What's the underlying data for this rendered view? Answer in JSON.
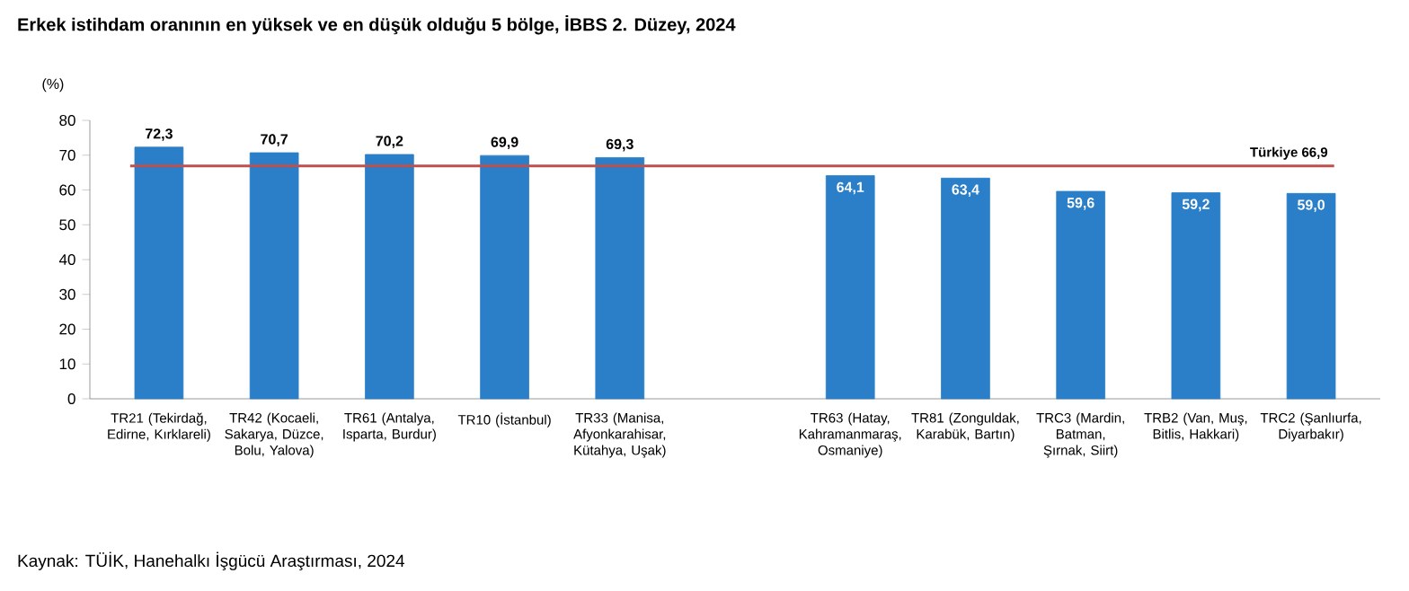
{
  "chart_data": {
    "type": "bar",
    "title": "Erkek istihdam oranının en yüksek ve en düşük olduğu 5 bölge, İBBS 2. Düzey, 2024",
    "ylabel": "(%)",
    "categories": [
      "TR21 (Tekirdağ, Edirne, Kırklareli)",
      "TR42 (Kocaeli, Sakarya, Düzce, Bolu, Yalova)",
      "TR61 (Antalya, Isparta, Burdur)",
      "TR10 (İstanbul)",
      "TR33 (Manisa, Afyonkarahisar, Kütahya, Uşak)",
      null,
      "TR63 (Hatay, Kahramanmaraş, Osmaniye)",
      "TR81 (Zonguldak, Karabük, Bartın)",
      "TRC3 (Mardin, Batman, Şırnak, Siirt)",
      "TRB2 (Van, Muş, Bitlis, Hakkari)",
      "TRC2 (Şanlıurfa, Diyarbakır)"
    ],
    "values": [
      72.3,
      70.7,
      70.2,
      69.9,
      69.3,
      null,
      64.1,
      63.4,
      59.6,
      59.2,
      59.0
    ],
    "value_labels": [
      "72,3",
      "70,7",
      "70,2",
      "69,9",
      "69,3",
      null,
      "64,1",
      "63,4",
      "59,6",
      "59,2",
      "59,0"
    ],
    "color": "#2a7fc8",
    "ylim": [
      0,
      80
    ],
    "yticks": [
      0,
      10,
      20,
      30,
      40,
      50,
      60,
      70,
      80
    ],
    "ref_lines": [
      {
        "axis": "y",
        "value": 66.9,
        "label": "Türkiye 66,9",
        "color": "#c0504d"
      }
    ],
    "annotations": [
      "Kaynak: TÜİK, Hanehalkı İşgücü Araştırması, 2024"
    ]
  }
}
